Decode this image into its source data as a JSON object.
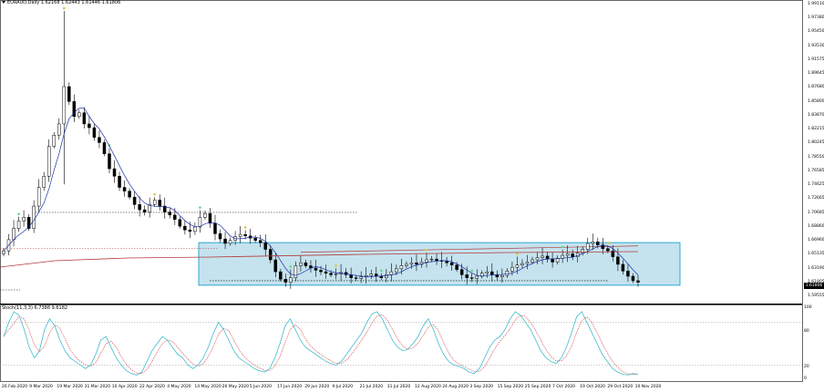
{
  "window": {
    "symbol_title": "EURAUD,Daily  1.62168 1.62443 1.61446 1.61806",
    "indicator_title": "Stoch(11,3,3) 6.7388 9.6182",
    "current_price": "1.61806"
  },
  "price_axis": {
    "labels": [
      "1.99110",
      "1.97380",
      "1.95450",
      "1.93530",
      "1.91575",
      "1.89645",
      "1.87680",
      "1.85800",
      "1.83870",
      "1.82215",
      "1.80245",
      "1.78550",
      "1.76585",
      "1.74625",
      "1.72665",
      "1.70685",
      "1.68860",
      "1.66960",
      "1.65135",
      "1.63190",
      "1.61805",
      "1.59555"
    ]
  },
  "osc_axis": {
    "labels": [
      "100",
      "80",
      "20",
      "0"
    ]
  },
  "time_axis": {
    "labels": [
      "26 Feb 2020",
      "9 Mar 2020",
      "19 Mar 2020",
      "31 Mar 2020",
      "10 Apr 2020",
      "22 Apr 2020",
      "4 May 2020",
      "14 May 2020",
      "26 May 2020",
      "5 Jun 2020",
      "17 Jun 2020",
      "29 Jun 2020",
      "9 Jul 2020",
      "21 Jul 2020",
      "31 Jul 2020",
      "12 Aug 2020",
      "24 Aug 2020",
      "3 Sep 2020",
      "15 Sep 2020",
      "25 Sep 2020",
      "7 Oct 2020",
      "19 Oct 2020",
      "29 Oct 2020",
      "10 Nov 2020"
    ]
  },
  "colors": {
    "background": "#ffffff",
    "candle": "#000000",
    "fast_ma": "#1c2fa8",
    "slow_ma": "#b23a3a",
    "highlight_fill": "#c5e3ee",
    "highlight_border": "#2ea8d6",
    "stoch_main": "#26b3c9",
    "stoch_signal": "#d43a3a",
    "fractal_up": "#5cd98a",
    "fractal_alt": "#e0c24a"
  },
  "chart_data": {
    "type": "candlestick",
    "instrument": "EURAUD",
    "timeframe": "Daily",
    "last_ohlc": {
      "open": 1.62168,
      "high": 1.62443,
      "low": 1.61446,
      "close": 1.61806
    },
    "ylim": [
      1.5955,
      1.9911
    ],
    "close_series": [
      1.66,
      1.675,
      1.69,
      1.7,
      1.705,
      1.69,
      1.72,
      1.745,
      1.76,
      1.8,
      1.815,
      1.83,
      1.88,
      1.86,
      1.84,
      1.845,
      1.83,
      1.825,
      1.812,
      1.805,
      1.79,
      1.77,
      1.76,
      1.745,
      1.74,
      1.732,
      1.722,
      1.715,
      1.712,
      1.722,
      1.728,
      1.72,
      1.712,
      1.708,
      1.702,
      1.693,
      1.688,
      1.686,
      1.692,
      1.705,
      1.71,
      1.697,
      1.683,
      1.676,
      1.67,
      1.674,
      1.679,
      1.682,
      1.68,
      1.677,
      1.674,
      1.671,
      1.662,
      1.648,
      1.632,
      1.622,
      1.618,
      1.624,
      1.64,
      1.644,
      1.64,
      1.637,
      1.634,
      1.632,
      1.63,
      1.628,
      1.629,
      1.631,
      1.628,
      1.624,
      1.623,
      1.625,
      1.627,
      1.629,
      1.626,
      1.624,
      1.628,
      1.632,
      1.636,
      1.64,
      1.642,
      1.644,
      1.642,
      1.645,
      1.648,
      1.649,
      1.647,
      1.646,
      1.644,
      1.641,
      1.635,
      1.628,
      1.624,
      1.623,
      1.626,
      1.63,
      1.632,
      1.628,
      1.625,
      1.627,
      1.633,
      1.638,
      1.641,
      1.643,
      1.645,
      1.648,
      1.651,
      1.653,
      1.649,
      1.645,
      1.65,
      1.654,
      1.656,
      1.652,
      1.657,
      1.662,
      1.67,
      1.672,
      1.668,
      1.663,
      1.66,
      1.652,
      1.642,
      1.633,
      1.626,
      1.62,
      1.618
    ],
    "horizontal_levels": [
      1.7115,
      1.663,
      1.62
    ],
    "highlight_range": [
      1.614,
      1.671
    ],
    "stochastic": {
      "k": 6.7388,
      "d": 9.6182,
      "levels": [
        20,
        80
      ]
    }
  }
}
